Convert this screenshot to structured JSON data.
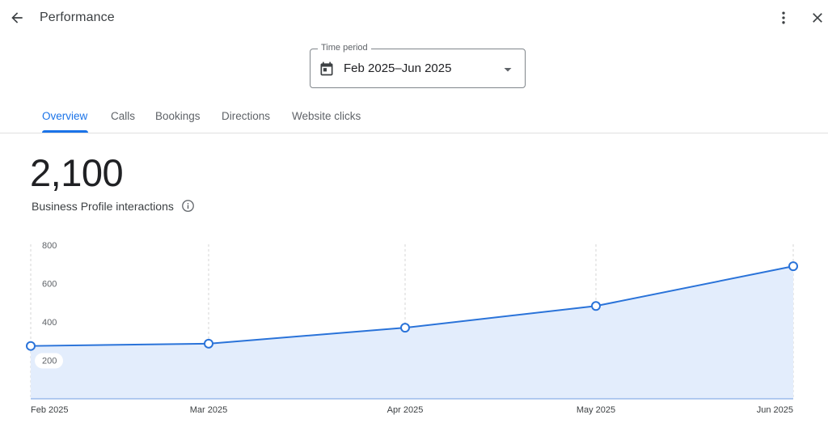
{
  "header": {
    "title": "Performance",
    "back_icon": "arrow-back-icon",
    "more_icon": "more-vert-icon",
    "close_icon": "close-icon"
  },
  "time_period": {
    "label": "Time period",
    "value": "Feb 2025–Jun 2025",
    "icon": "calendar-icon"
  },
  "tabs": [
    {
      "label": "Overview",
      "active": true
    },
    {
      "label": "Calls",
      "active": false
    },
    {
      "label": "Bookings",
      "active": false
    },
    {
      "label": "Directions",
      "active": false
    },
    {
      "label": "Website clicks",
      "active": false
    }
  ],
  "metric": {
    "value": "2,100",
    "label": "Business Profile interactions"
  },
  "colors": {
    "accent": "#1a73e8",
    "line": "#2a73d9",
    "area_fill": "#e3edfc"
  },
  "chart_data": {
    "type": "area",
    "x": [
      "Feb 2025",
      "Mar 2025",
      "Apr 2025",
      "May 2025",
      "Jun 2025"
    ],
    "values": [
      275,
      287,
      370,
      483,
      690
    ],
    "yticks": [
      "200",
      "400",
      "600",
      "800"
    ],
    "ylim": [
      0,
      800
    ],
    "grid": "vertical-dashed",
    "title": "",
    "xlabel": "",
    "ylabel": ""
  }
}
